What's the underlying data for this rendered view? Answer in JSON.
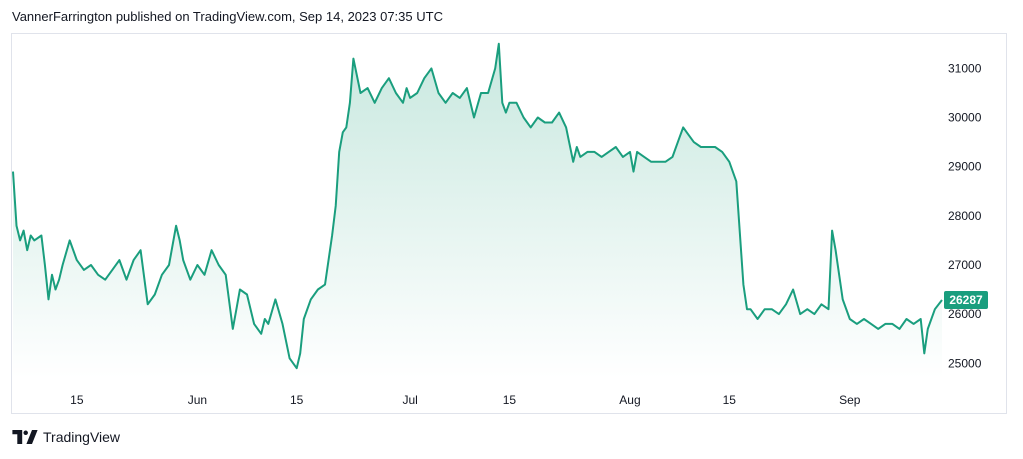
{
  "header": {
    "text": "VannerFarrington published on TradingView.com, Sep 14, 2023 07:35 UTC"
  },
  "footer": {
    "brand": "TradingView"
  },
  "colors": {
    "line": "#1a9e7e",
    "fill_top": "#c8e8df",
    "fill_bottom": "#ffffff",
    "price_tag": "#1a9e7e",
    "border": "#e0e3eb"
  },
  "chart_data": {
    "type": "area",
    "title": "",
    "xlabel": "",
    "ylabel": "",
    "ylim": [
      24700,
      31700
    ],
    "grid": false,
    "y_ticks": [
      25000,
      26000,
      27000,
      28000,
      29000,
      30000,
      31000
    ],
    "x_ticks": [
      {
        "label": "15",
        "date": "2023-05-15"
      },
      {
        "label": "Jun",
        "date": "2023-06-01"
      },
      {
        "label": "15",
        "date": "2023-06-15"
      },
      {
        "label": "Jul",
        "date": "2023-07-01"
      },
      {
        "label": "15",
        "date": "2023-07-15"
      },
      {
        "label": "Aug",
        "date": "2023-08-01"
      },
      {
        "label": "15",
        "date": "2023-08-15"
      },
      {
        "label": "Sep",
        "date": "2023-09-01"
      }
    ],
    "last_price": "26287",
    "series": [
      {
        "x": [
          "2023-05-06",
          "2023-05-06T12:00",
          "2023-05-07",
          "2023-05-07T12:00",
          "2023-05-08",
          "2023-05-08T12:00",
          "2023-05-09",
          "2023-05-10",
          "2023-05-10T12:00",
          "2023-05-11",
          "2023-05-11T12:00",
          "2023-05-12",
          "2023-05-12T12:00",
          "2023-05-13",
          "2023-05-14",
          "2023-05-15",
          "2023-05-16",
          "2023-05-17",
          "2023-05-18",
          "2023-05-19",
          "2023-05-20",
          "2023-05-21",
          "2023-05-22",
          "2023-05-23",
          "2023-05-24",
          "2023-05-25",
          "2023-05-26",
          "2023-05-27",
          "2023-05-28",
          "2023-05-29",
          "2023-05-29T12:00",
          "2023-05-30",
          "2023-05-31",
          "2023-06-01",
          "2023-06-02",
          "2023-06-03",
          "2023-06-04",
          "2023-06-05",
          "2023-06-06",
          "2023-06-06T12:00",
          "2023-06-07",
          "2023-06-08",
          "2023-06-09",
          "2023-06-10",
          "2023-06-10T12:00",
          "2023-06-11",
          "2023-06-12",
          "2023-06-13",
          "2023-06-14",
          "2023-06-15",
          "2023-06-15T12:00",
          "2023-06-16",
          "2023-06-17",
          "2023-06-18",
          "2023-06-19",
          "2023-06-20",
          "2023-06-20T12:00",
          "2023-06-21",
          "2023-06-21T12:00",
          "2023-06-22",
          "2023-06-22T12:00",
          "2023-06-23",
          "2023-06-24",
          "2023-06-25",
          "2023-06-26",
          "2023-06-27",
          "2023-06-28",
          "2023-06-29",
          "2023-06-30",
          "2023-06-30T12:00",
          "2023-07-01",
          "2023-07-02",
          "2023-07-03",
          "2023-07-04",
          "2023-07-05",
          "2023-07-06",
          "2023-07-06T12:00",
          "2023-07-07",
          "2023-07-08",
          "2023-07-09",
          "2023-07-10",
          "2023-07-11",
          "2023-07-12",
          "2023-07-13",
          "2023-07-13T12:00",
          "2023-07-14",
          "2023-07-14T12:00",
          "2023-07-15",
          "2023-07-16",
          "2023-07-17",
          "2023-07-18",
          "2023-07-19",
          "2023-07-20",
          "2023-07-21",
          "2023-07-22",
          "2023-07-23",
          "2023-07-24",
          "2023-07-24T12:00",
          "2023-07-25",
          "2023-07-26",
          "2023-07-27",
          "2023-07-28",
          "2023-07-29",
          "2023-07-30",
          "2023-07-31",
          "2023-08-01",
          "2023-08-01T12:00",
          "2023-08-02",
          "2023-08-03",
          "2023-08-04",
          "2023-08-05",
          "2023-08-06",
          "2023-08-07",
          "2023-08-08",
          "2023-08-08T12:00",
          "2023-08-09",
          "2023-08-10",
          "2023-08-11",
          "2023-08-12",
          "2023-08-13",
          "2023-08-14",
          "2023-08-15",
          "2023-08-16",
          "2023-08-17",
          "2023-08-17T12:00",
          "2023-08-18",
          "2023-08-19",
          "2023-08-20",
          "2023-08-21",
          "2023-08-22",
          "2023-08-23",
          "2023-08-24",
          "2023-08-25",
          "2023-08-26",
          "2023-08-27",
          "2023-08-28",
          "2023-08-29",
          "2023-08-29T12:00",
          "2023-08-30",
          "2023-08-31",
          "2023-09-01",
          "2023-09-02",
          "2023-09-03",
          "2023-09-04",
          "2023-09-05",
          "2023-09-06",
          "2023-09-07",
          "2023-09-08",
          "2023-09-09",
          "2023-09-10",
          "2023-09-11",
          "2023-09-11T12:00",
          "2023-09-12",
          "2023-09-13",
          "2023-09-14"
        ],
        "values": [
          28900,
          27800,
          27500,
          27700,
          27300,
          27600,
          27500,
          27600,
          27000,
          26300,
          26800,
          26500,
          26700,
          27000,
          27500,
          27100,
          26900,
          27000,
          26800,
          26700,
          26900,
          27100,
          26700,
          27100,
          27300,
          26200,
          26400,
          26800,
          27000,
          27800,
          27500,
          27100,
          26700,
          27000,
          26800,
          27300,
          27000,
          26800,
          25700,
          26100,
          26500,
          26400,
          25800,
          25600,
          25900,
          25800,
          26300,
          25800,
          25100,
          24900,
          25200,
          25900,
          26300,
          26500,
          26600,
          27600,
          28200,
          29300,
          29700,
          29800,
          30300,
          31200,
          30500,
          30600,
          30300,
          30600,
          30800,
          30500,
          30300,
          30600,
          30400,
          30500,
          30800,
          31000,
          30500,
          30300,
          30400,
          30500,
          30400,
          30600,
          30000,
          30500,
          30500,
          31000,
          31500,
          30300,
          30100,
          30300,
          30300,
          30000,
          29800,
          30000,
          29900,
          29900,
          30100,
          29800,
          29100,
          29400,
          29200,
          29300,
          29300,
          29200,
          29300,
          29400,
          29200,
          29300,
          28900,
          29300,
          29200,
          29100,
          29100,
          29100,
          29200,
          29600,
          29800,
          29700,
          29500,
          29400,
          29400,
          29400,
          29300,
          29100,
          28700,
          26600,
          26100,
          26100,
          25900,
          26100,
          26100,
          26000,
          26200,
          26500,
          26000,
          26100,
          26000,
          26200,
          26100,
          27700,
          27300,
          26300,
          25900,
          25800,
          25900,
          25800,
          25700,
          25800,
          25800,
          25700,
          25900,
          25800,
          25900,
          25200,
          25700,
          26100,
          26287
        ]
      }
    ]
  }
}
